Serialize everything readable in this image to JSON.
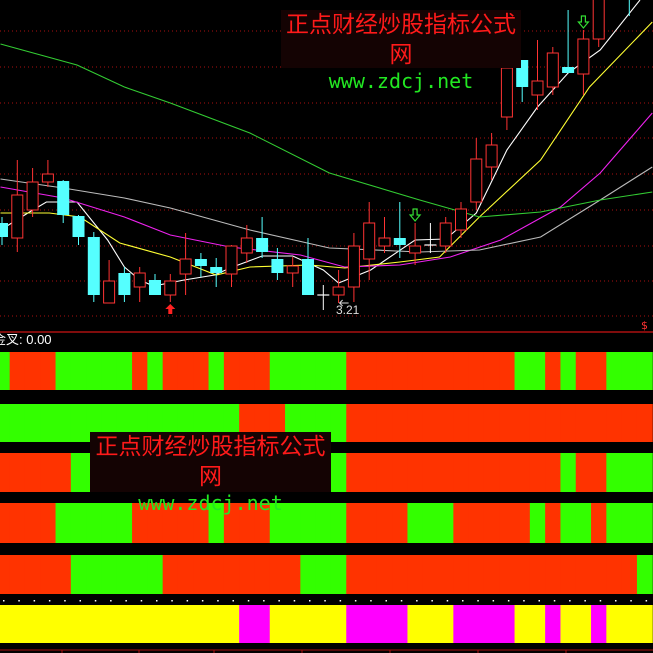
{
  "colors": {
    "up": "#ff3333",
    "down": "#55ffff",
    "doji": "#ffffff",
    "band_red": "#ff3300",
    "band_green": "#33ff00",
    "band_yellow": "#ffff00",
    "band_magenta": "#ff00ff",
    "grid": "#aa1111"
  },
  "watermark": {
    "title": "正点财经炒股指标公式网",
    "url": "www.zdcj.net"
  },
  "indicator_header": "金叉: 0.00",
  "chart_data": [
    {
      "type": "candlestick",
      "title": "",
      "low_label": "3.21",
      "low_label_index": 22,
      "candles": [
        [
          4.08,
          4.14,
          3.86,
          3.94
        ],
        [
          3.93,
          4.71,
          3.79,
          4.36
        ],
        [
          4.21,
          4.63,
          4.14,
          4.49
        ],
        [
          4.49,
          4.71,
          4.44,
          4.57
        ],
        [
          4.5,
          4.51,
          4.08,
          4.16
        ],
        [
          4.15,
          4.16,
          3.86,
          3.94
        ],
        [
          3.94,
          3.99,
          3.29,
          3.36
        ],
        [
          3.28,
          3.71,
          3.28,
          3.5
        ],
        [
          3.58,
          3.64,
          3.29,
          3.36
        ],
        [
          3.44,
          3.64,
          3.29,
          3.58
        ],
        [
          3.51,
          3.57,
          3.36,
          3.36
        ],
        [
          3.36,
          3.57,
          3.29,
          3.5
        ],
        [
          3.57,
          3.98,
          3.36,
          3.72
        ],
        [
          3.72,
          3.78,
          3.54,
          3.65
        ],
        [
          3.64,
          3.73,
          3.44,
          3.58
        ],
        [
          3.57,
          3.86,
          3.44,
          3.85
        ],
        [
          3.78,
          4.06,
          3.68,
          3.93
        ],
        [
          3.93,
          4.14,
          3.73,
          3.79
        ],
        [
          3.72,
          3.83,
          3.51,
          3.58
        ],
        [
          3.58,
          3.74,
          3.44,
          3.65
        ],
        [
          3.72,
          3.93,
          3.36,
          3.36
        ],
        [
          3.36,
          3.46,
          3.21,
          3.36
        ],
        [
          3.36,
          3.61,
          3.28,
          3.44
        ],
        [
          3.44,
          3.98,
          3.29,
          3.85
        ],
        [
          3.72,
          4.29,
          3.51,
          4.08
        ],
        [
          3.85,
          4.14,
          3.78,
          3.93
        ],
        [
          3.93,
          4.29,
          3.73,
          3.86
        ],
        [
          3.78,
          4.08,
          3.66,
          3.85
        ],
        [
          3.86,
          4.08,
          3.78,
          3.86
        ],
        [
          3.85,
          4.14,
          3.78,
          4.08
        ],
        [
          4.01,
          4.29,
          3.93,
          4.22
        ],
        [
          4.29,
          4.93,
          4.21,
          4.72
        ],
        [
          4.64,
          4.98,
          4.51,
          4.86
        ],
        [
          5.14,
          5.71,
          5.01,
          5.63
        ],
        [
          5.71,
          5.71,
          5.29,
          5.44
        ],
        [
          5.36,
          5.91,
          5.21,
          5.5
        ],
        [
          5.44,
          5.84,
          5.36,
          5.78
        ],
        [
          5.64,
          6.21,
          5.58,
          5.58
        ],
        [
          5.57,
          6.01,
          5.36,
          5.92
        ],
        [
          5.92,
          6.51,
          5.84,
          6.41
        ],
        [
          6.4,
          6.9,
          6.35,
          6.8
        ],
        [
          6.8,
          6.9,
          6.15,
          6.6
        ]
      ],
      "candle_fields": [
        "open",
        "high",
        "low",
        "close"
      ],
      "ma_lines": [
        {
          "color": "#ffffff",
          "points": [
            [
              -0.1,
              4.01
            ],
            [
              1.8,
              4.19
            ],
            [
              2.9,
              4.29
            ],
            [
              4.9,
              4.29
            ],
            [
              6.9,
              3.91
            ],
            [
              8.0,
              3.64
            ],
            [
              9.0,
              3.51
            ],
            [
              9.9,
              3.45
            ],
            [
              11.9,
              3.51
            ],
            [
              13.9,
              3.56
            ],
            [
              14.9,
              3.63
            ],
            [
              17.0,
              3.75
            ],
            [
              19.0,
              3.75
            ],
            [
              21.0,
              3.61
            ],
            [
              22.0,
              3.48
            ],
            [
              24.1,
              3.61
            ],
            [
              27.0,
              3.91
            ],
            [
              29.0,
              3.92
            ],
            [
              31.0,
              4.18
            ],
            [
              33.0,
              4.81
            ],
            [
              35.0,
              5.24
            ],
            [
              37.0,
              5.58
            ],
            [
              39.1,
              5.81
            ],
            [
              41.7,
              6.31
            ]
          ]
        },
        {
          "color": "#ffff33",
          "points": [
            [
              -0.1,
              4.18
            ],
            [
              3.1,
              4.18
            ],
            [
              5.1,
              4.14
            ],
            [
              7.7,
              3.88
            ],
            [
              11.0,
              3.74
            ],
            [
              14.0,
              3.56
            ],
            [
              16.2,
              3.64
            ],
            [
              20.1,
              3.66
            ],
            [
              22.4,
              3.63
            ],
            [
              26.0,
              3.69
            ],
            [
              28.6,
              3.74
            ],
            [
              31.2,
              4.14
            ],
            [
              35.2,
              4.71
            ],
            [
              38.4,
              5.44
            ],
            [
              42.5,
              6.09
            ]
          ]
        },
        {
          "color": "#ee22ee",
          "points": [
            [
              -0.1,
              4.44
            ],
            [
              4.0,
              4.33
            ],
            [
              8.0,
              4.14
            ],
            [
              11.0,
              3.96
            ],
            [
              14.9,
              3.84
            ],
            [
              19.5,
              3.76
            ],
            [
              22.4,
              3.64
            ],
            [
              26.0,
              3.66
            ],
            [
              29.3,
              3.74
            ],
            [
              32.6,
              3.91
            ],
            [
              36.5,
              4.24
            ],
            [
              39.1,
              4.58
            ],
            [
              42.5,
              5.18
            ]
          ]
        },
        {
          "color": "#bbbbbb",
          "points": [
            [
              -0.1,
              4.52
            ],
            [
              4.0,
              4.43
            ],
            [
              8.0,
              4.33
            ],
            [
              11.0,
              4.23
            ],
            [
              16.2,
              4.01
            ],
            [
              21.4,
              3.83
            ],
            [
              27.3,
              3.79
            ],
            [
              31.2,
              3.81
            ],
            [
              35.2,
              3.94
            ],
            [
              39.1,
              4.31
            ],
            [
              42.5,
              4.64
            ]
          ]
        },
        {
          "color": "#33cc33",
          "points": [
            [
              -0.1,
              5.87
            ],
            [
              4.9,
              5.66
            ],
            [
              8.0,
              5.44
            ],
            [
              11.0,
              5.28
            ],
            [
              16.2,
              4.98
            ],
            [
              21.4,
              4.58
            ],
            [
              27.3,
              4.31
            ],
            [
              31.2,
              4.14
            ],
            [
              35.2,
              4.19
            ],
            [
              39.1,
              4.31
            ],
            [
              42.5,
              4.39
            ]
          ]
        }
      ],
      "buy_signals": [
        11
      ],
      "sell_signals": [
        27,
        38
      ]
    },
    {
      "type": "heatmap",
      "columns": 43,
      "rows": [
        {
          "palette": [
            "#33ff00",
            "#ff3300"
          ],
          "states": "GRRRGGGGGRGRRRGRRRGGGGGRRRRRRRRRRRGGRGRRGGG"
        },
        {
          "palette": [
            "#33ff00",
            "#ff3300"
          ],
          "states": "GGGGGGGGGGGGGGGGRRRGGGGRRRRRRRRRRRRRRRRRRRR"
        },
        {
          "palette": [
            "#33ff00",
            "#ff3300"
          ],
          "states": "RRRRRGGGGGGGGGGGGGGGGGGRRRRRRRRRRRRRRGRRGGG"
        },
        {
          "palette": [
            "#33ff00",
            "#ff3300"
          ],
          "states": "RRRRGGGGGRRRRRGRRRGGGGGRRRRGGGRRRRRGRGGRGGG"
        },
        {
          "palette": [
            "#33ff00",
            "#ff3300"
          ],
          "states": "RRRRRGGGGGGRRRRRRRRRGGGRRRRRRRRRRRRRRRRRRRG"
        },
        {
          "palette": [
            "#ffff00",
            "#ff00ff"
          ],
          "states": "YYYYYYYYYYYYYYYYMMYYYYYMMMMYYYMMMMYYMYYMYYY"
        }
      ]
    }
  ]
}
